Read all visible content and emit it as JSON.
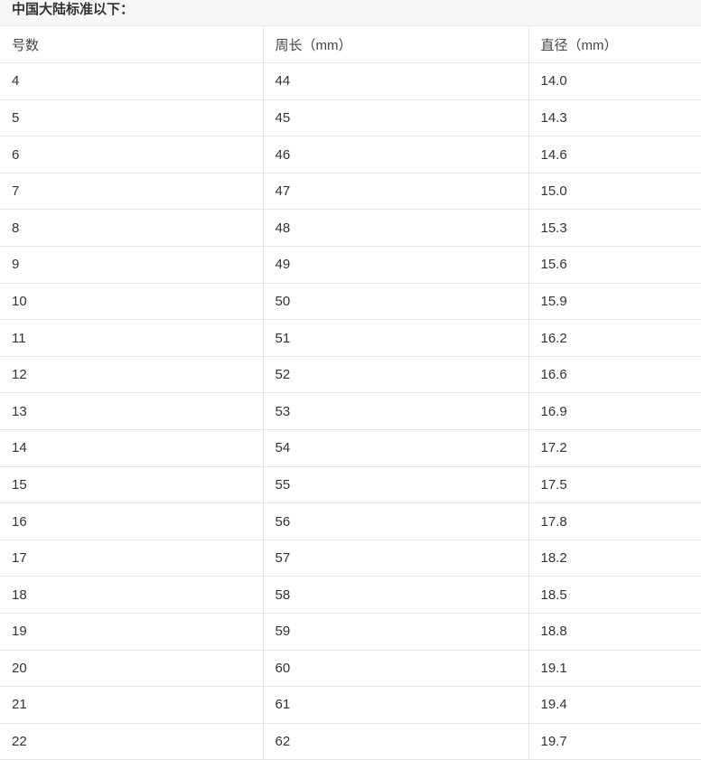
{
  "caption": "中国大陆标准以下：",
  "headers": [
    "号数",
    "周长（mm）",
    "直径（mm）"
  ],
  "rows": [
    [
      "4",
      "44",
      "14.0"
    ],
    [
      "5",
      "45",
      "14.3"
    ],
    [
      "6",
      "46",
      "14.6"
    ],
    [
      "7",
      "47",
      "15.0"
    ],
    [
      "8",
      "48",
      "15.3"
    ],
    [
      "9",
      "49",
      "15.6"
    ],
    [
      "10",
      "50",
      "15.9"
    ],
    [
      "11",
      "51",
      "16.2"
    ],
    [
      "12",
      "52",
      "16.6"
    ],
    [
      "13",
      "53",
      "16.9"
    ],
    [
      "14",
      "54",
      "17.2"
    ],
    [
      "15",
      "55",
      "17.5"
    ],
    [
      "16",
      "56",
      "17.8"
    ],
    [
      "17",
      "57",
      "18.2"
    ],
    [
      "18",
      "58",
      "18.5"
    ],
    [
      "19",
      "59",
      "18.8"
    ],
    [
      "20",
      "60",
      "19.1"
    ],
    [
      "21",
      "61",
      "19.4"
    ],
    [
      "22",
      "62",
      "19.7"
    ]
  ]
}
